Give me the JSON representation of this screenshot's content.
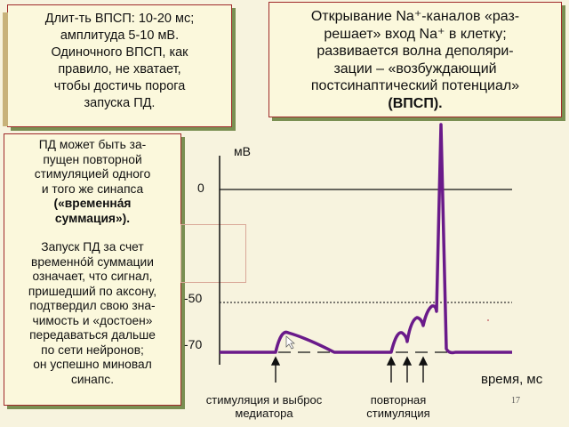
{
  "top_left_box": {
    "lines": [
      "Длит-ть ВПСП: 10-20 мс;",
      "амплитуда 5-10 мВ.",
      "Одиночного ВПСП, как",
      "правило, не хватает,",
      "чтобы достичь порога",
      "запуска ПД."
    ]
  },
  "top_right_box": {
    "lines": [
      "Открывание Na⁺-каналов «раз-",
      "решает» вход Na⁺ в клетку;",
      "развивается волна деполяри-",
      "зации – «возбуждающий",
      "постсинаптический потенциал»"
    ],
    "abbr": "(ВПСП)."
  },
  "left_box": {
    "para1_lines": [
      "ПД может быть за-",
      "пущен повторной",
      "стимуляцией одного",
      "и того же синапса"
    ],
    "para1_bold_lines": [
      "(«временна́я",
      "суммация»)."
    ],
    "para2_lines": [
      "Запуск ПД за счет",
      "временно́й суммации",
      "означает, что сигнал,",
      "пришедший по аксону,",
      "подтвердил свою зна-",
      "чимость и «достоен»",
      "передаваться дальше",
      "по сети нейронов;",
      "он успешно миновал",
      "синапс."
    ]
  },
  "graph": {
    "y_unit": "мВ",
    "tick_0": "0",
    "tick_minus50": "-50",
    "tick_minus70": "-70",
    "x_label": "время, мс",
    "caption_single": [
      "стимуляция и выброс",
      "медиатора"
    ],
    "caption_repeat": [
      "повторная",
      "стимуляция"
    ]
  },
  "colors": {
    "trace": "#6a1a8a",
    "box_border": "#a02a2a",
    "box_shadow": "#7a8f52"
  },
  "slide_number": "17"
}
